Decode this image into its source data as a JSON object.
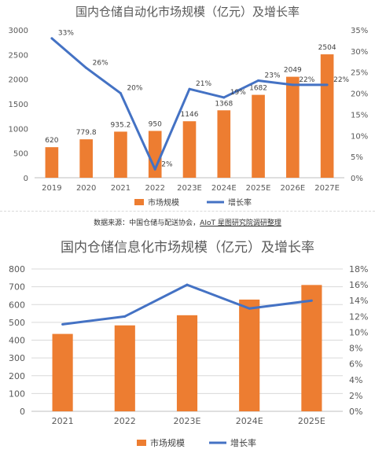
{
  "source_text": "数据来源：中国仓储与配送协会，",
  "source_org": "AIoT 星图研究院调研整理",
  "chart_data": [
    {
      "type": "bar",
      "title": "国内仓储自动化市场规模（亿元）及增长率",
      "categories": [
        "2019",
        "2020",
        "2021",
        "2022",
        "2023E",
        "2024E",
        "2025E",
        "2026E",
        "2027E"
      ],
      "series": [
        {
          "name": "市场规模",
          "kind": "bar",
          "axis": "left",
          "color": "#ED7D31",
          "values": [
            620,
            779.8,
            935.2,
            950,
            1146,
            1368,
            1682,
            2049,
            2504
          ],
          "labels": [
            "620",
            "779.8",
            "935.2",
            "950",
            "1146",
            "1368",
            "1682",
            "2049",
            "2504"
          ]
        },
        {
          "name": "增长率",
          "kind": "line",
          "axis": "right",
          "color": "#4472C4",
          "values": [
            33,
            26,
            20,
            2,
            21,
            19,
            23,
            22,
            22
          ],
          "labels": [
            "33%",
            "26%",
            "20%",
            "2%",
            "21%",
            "19%",
            "23%",
            "22%",
            "22%"
          ]
        }
      ],
      "ylim": [
        0,
        3000
      ],
      "yticks": [
        "0",
        "500",
        "1000",
        "1500",
        "2000",
        "2500",
        "3000"
      ],
      "y2lim": [
        0,
        35
      ],
      "y2ticks": [
        "0%",
        "5%",
        "10%",
        "15%",
        "20%",
        "25%",
        "30%",
        "35%"
      ],
      "grid": false,
      "legend": "bottom"
    },
    {
      "type": "bar",
      "title": "国内仓储信息化市场规模（亿元）及增长率",
      "categories": [
        "2021",
        "2022",
        "2023E",
        "2024E",
        "2025E"
      ],
      "series": [
        {
          "name": "市场规模",
          "kind": "bar",
          "axis": "left",
          "color": "#ED7D31",
          "values": [
            435,
            483,
            540,
            628,
            710
          ]
        },
        {
          "name": "增长率",
          "kind": "line",
          "axis": "right",
          "color": "#4472C4",
          "values": [
            11,
            12,
            16,
            13,
            14
          ]
        }
      ],
      "ylim": [
        0,
        800
      ],
      "yticks": [
        "0",
        "100",
        "200",
        "300",
        "400",
        "500",
        "600",
        "700",
        "800"
      ],
      "y2lim": [
        0,
        18
      ],
      "y2ticks": [
        "0%",
        "2%",
        "4%",
        "6%",
        "8%",
        "10%",
        "12%",
        "14%",
        "16%",
        "18%"
      ],
      "grid": true,
      "legend": "bottom"
    }
  ]
}
